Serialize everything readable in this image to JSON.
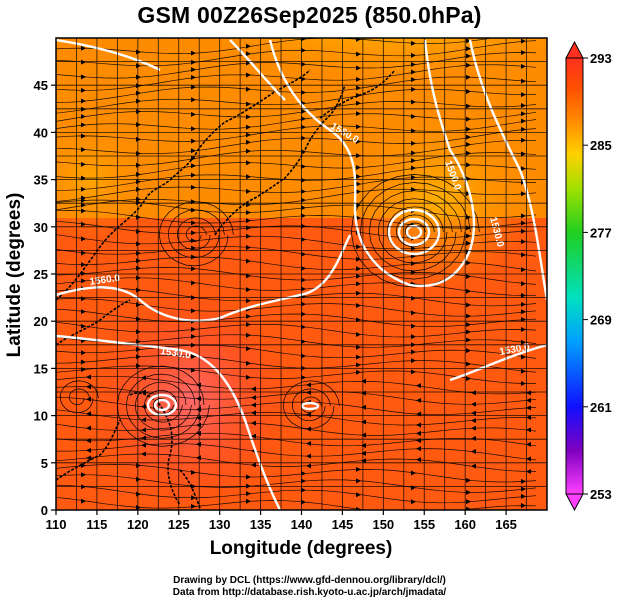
{
  "title": "GSM 00Z26Sep2025 (850.0hPa)",
  "map": {
    "xlabel": "Longitude (degrees)",
    "ylabel": "Latitude  (degrees)",
    "xlim": [
      110,
      170
    ],
    "ylim": [
      0,
      50
    ],
    "xticks": [
      "110",
      "115",
      "120",
      "125",
      "130",
      "135",
      "140",
      "145",
      "150",
      "155",
      "160",
      "165"
    ],
    "yticks": [
      "0",
      "5",
      "10",
      "15",
      "20",
      "25",
      "30",
      "35",
      "40",
      "45"
    ],
    "grid": true,
    "contour_labels": [
      "1560.0",
      "1530.0",
      "1500.0",
      "1530.0",
      "1530.0",
      "1560.0"
    ]
  },
  "colorbar": {
    "ticks": [
      "293",
      "285",
      "277",
      "269",
      "261",
      "253"
    ],
    "colors": [
      "#ff40ff",
      "#8000c0",
      "#1010ff",
      "#00a0ff",
      "#00e0c0",
      "#20d020",
      "#a0e000",
      "#ffd000",
      "#ff9000",
      "#ff5000",
      "#ff3020"
    ]
  },
  "credits": {
    "line1": "Drawing by DCL (https://www.gfd-dennou.org/library/dcl/)",
    "line2": "Data from http://database.rish.kyoto-u.ac.jp/arch/jmadata/"
  }
}
